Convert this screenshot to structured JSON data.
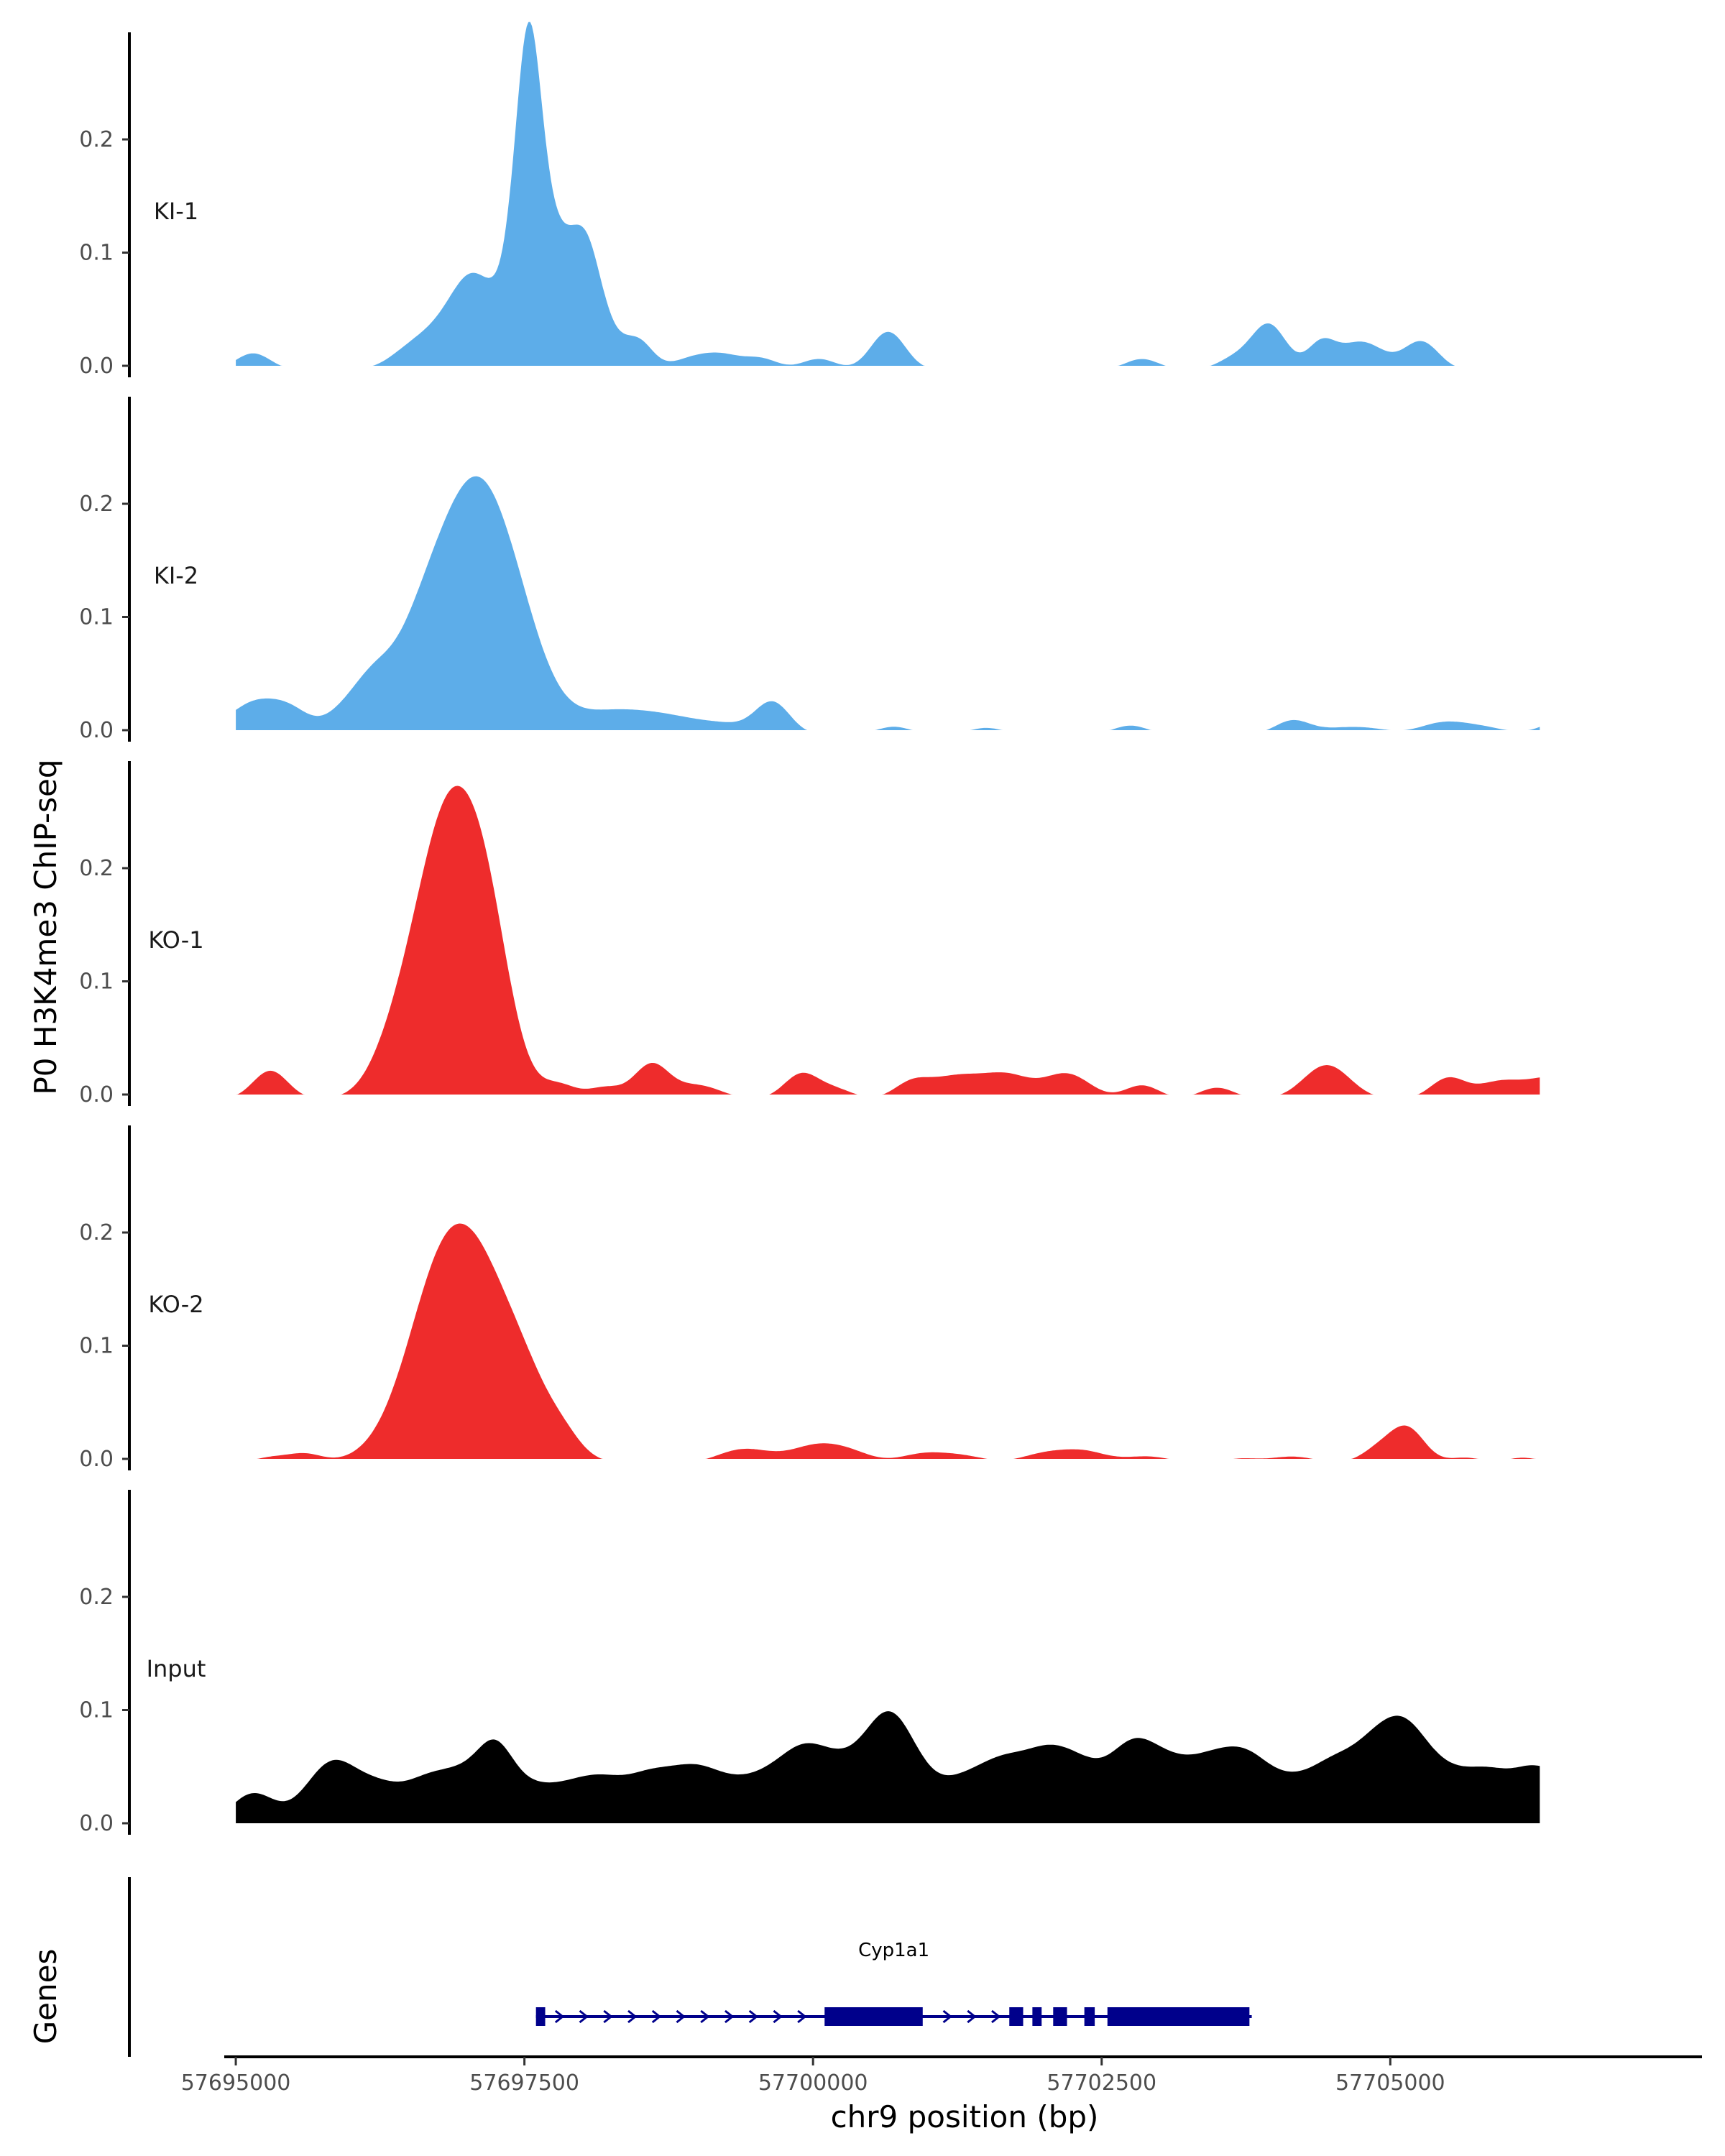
{
  "chart_data": {
    "type": "area",
    "title": "",
    "ylabel": "P0 H3K4me3 ChIP-seq",
    "xlabel": "chr9 position (bp)",
    "genes_label": "Genes",
    "xlim": [
      57694900,
      57707700
    ],
    "ylim": [
      0,
      0.3
    ],
    "x_ticks": [
      57695000,
      57697500,
      57700000,
      57702500,
      57705000
    ],
    "x_tick_labels": [
      "57695000",
      "57697500",
      "57700000",
      "57702500",
      "57705000"
    ],
    "y_ticks": [
      0.0,
      0.1,
      0.2
    ],
    "y_tick_labels": [
      "0.0",
      "0.1",
      "0.2"
    ],
    "colors": {
      "KI": "#5dade9",
      "KO": "#ee2c2c",
      "Input": "#000000",
      "gene": "#00008b",
      "axis": "#000000"
    },
    "series": [
      {
        "name": "KI-1",
        "color": "#5dade9",
        "peaks": [
          [
            57695150,
            0.015,
            150
          ],
          [
            57696550,
            0.02,
            200
          ],
          [
            57696900,
            0.035,
            200
          ],
          [
            57697050,
            0.02,
            150
          ],
          [
            57697230,
            0.05,
            250
          ],
          [
            57697460,
            0.08,
            120
          ],
          [
            57697540,
            0.135,
            100
          ],
          [
            57697600,
            0.045,
            120
          ],
          [
            57697700,
            0.075,
            150
          ],
          [
            57697900,
            0.055,
            150
          ],
          [
            57698050,
            0.05,
            120
          ],
          [
            57698150,
            0.035,
            200
          ],
          [
            57698500,
            0.02,
            120
          ],
          [
            57699000,
            0.012,
            200
          ],
          [
            57699250,
            0.008,
            150
          ],
          [
            57699550,
            0.01,
            150
          ],
          [
            57700050,
            0.01,
            150
          ],
          [
            57700650,
            0.034,
            150
          ],
          [
            57702850,
            0.01,
            150
          ],
          [
            57703650,
            0.01,
            150
          ],
          [
            57703950,
            0.04,
            150
          ],
          [
            57704400,
            0.022,
            120
          ],
          [
            57704750,
            0.025,
            200
          ],
          [
            57705270,
            0.025,
            150
          ]
        ]
      },
      {
        "name": "KI-2",
        "color": "#5dade9",
        "peaks": [
          [
            57695200,
            0.03,
            250
          ],
          [
            57695500,
            0.01,
            150
          ],
          [
            57696000,
            0.02,
            200
          ],
          [
            57696200,
            0.015,
            150
          ],
          [
            57696900,
            0.17,
            400
          ],
          [
            57697200,
            0.08,
            250
          ],
          [
            57697500,
            0.03,
            200
          ],
          [
            57697750,
            0.01,
            200
          ],
          [
            57698100,
            0.01,
            250
          ],
          [
            57698450,
            0.015,
            300
          ],
          [
            57698900,
            0.01,
            300
          ],
          [
            57699300,
            0.005,
            200
          ],
          [
            57699650,
            0.028,
            150
          ],
          [
            57700700,
            0.007,
            150
          ],
          [
            57701500,
            0.006,
            150
          ],
          [
            57702750,
            0.008,
            150
          ],
          [
            57704150,
            0.012,
            150
          ],
          [
            57704500,
            0.004,
            200
          ],
          [
            57704800,
            0.005,
            200
          ],
          [
            57705450,
            0.01,
            200
          ],
          [
            57705800,
            0.006,
            200
          ],
          [
            57706550,
            0.015,
            200
          ],
          [
            57706850,
            0.008,
            150
          ]
        ]
      },
      {
        "name": "KO-1",
        "color": "#ee2c2c",
        "peaks": [
          [
            57695300,
            0.025,
            150
          ],
          [
            57696350,
            0.022,
            200
          ],
          [
            57696850,
            0.255,
            300
          ],
          [
            57697200,
            0.075,
            200
          ],
          [
            57697800,
            0.012,
            150
          ],
          [
            57698200,
            0.01,
            150
          ],
          [
            57698600,
            0.03,
            150
          ],
          [
            57699000,
            0.012,
            200
          ],
          [
            57699900,
            0.022,
            150
          ],
          [
            57700200,
            0.008,
            150
          ],
          [
            57700850,
            0.012,
            150
          ],
          [
            57701250,
            0.02,
            250
          ],
          [
            57701700,
            0.018,
            200
          ],
          [
            57702200,
            0.022,
            200
          ],
          [
            57702850,
            0.012,
            150
          ],
          [
            57703500,
            0.01,
            150
          ],
          [
            57704450,
            0.03,
            200
          ],
          [
            57705500,
            0.018,
            150
          ],
          [
            57705950,
            0.015,
            200
          ],
          [
            57706400,
            0.018,
            200
          ],
          [
            57706800,
            0.012,
            150
          ],
          [
            57707250,
            0.008,
            150
          ],
          [
            57708000,
            0.008,
            150
          ]
        ]
      },
      {
        "name": "KO-2",
        "color": "#ee2c2c",
        "peaks": [
          [
            57695300,
            0.005,
            150
          ],
          [
            57695600,
            0.008,
            150
          ],
          [
            57696700,
            0.03,
            250
          ],
          [
            57697000,
            0.195,
            400
          ],
          [
            57697550,
            0.02,
            200
          ],
          [
            57697850,
            0.012,
            150
          ],
          [
            57699350,
            0.01,
            200
          ],
          [
            57699600,
            0.005,
            200
          ],
          [
            57700000,
            0.013,
            200
          ],
          [
            57700300,
            0.01,
            200
          ],
          [
            57700950,
            0.008,
            200
          ],
          [
            57701300,
            0.006,
            200
          ],
          [
            57702000,
            0.008,
            200
          ],
          [
            57702350,
            0.01,
            200
          ],
          [
            57702900,
            0.006,
            200
          ],
          [
            57703700,
            0.004,
            150
          ],
          [
            57704150,
            0.006,
            200
          ],
          [
            57704900,
            0.012,
            150
          ],
          [
            57705150,
            0.03,
            150
          ],
          [
            57705650,
            0.005,
            150
          ],
          [
            57706150,
            0.005,
            150
          ],
          [
            57706800,
            0.025,
            150
          ],
          [
            57707200,
            0.005,
            150
          ]
        ]
      },
      {
        "name": "Input",
        "color": "#000000",
        "peaks": [
          [
            57695150,
            0.03,
            200
          ],
          [
            57695700,
            0.025,
            200
          ],
          [
            57695900,
            0.038,
            200
          ],
          [
            57696250,
            0.03,
            200
          ],
          [
            57696650,
            0.035,
            200
          ],
          [
            57697000,
            0.04,
            200
          ],
          [
            57697250,
            0.045,
            150
          ],
          [
            57697500,
            0.03,
            200
          ],
          [
            57697850,
            0.025,
            200
          ],
          [
            57698150,
            0.03,
            200
          ],
          [
            57698600,
            0.045,
            250
          ],
          [
            57699000,
            0.035,
            200
          ],
          [
            57699300,
            0.025,
            200
          ],
          [
            57699600,
            0.03,
            200
          ],
          [
            57699900,
            0.045,
            200
          ],
          [
            57700250,
            0.05,
            250
          ],
          [
            57700650,
            0.075,
            200
          ],
          [
            57700900,
            0.03,
            200
          ],
          [
            57701250,
            0.025,
            200
          ],
          [
            57701650,
            0.055,
            250
          ],
          [
            57702050,
            0.045,
            200
          ],
          [
            57702350,
            0.04,
            200
          ],
          [
            57702750,
            0.06,
            200
          ],
          [
            57703050,
            0.035,
            200
          ],
          [
            57703450,
            0.055,
            250
          ],
          [
            57703800,
            0.04,
            200
          ],
          [
            57704150,
            0.03,
            200
          ],
          [
            57704500,
            0.045,
            200
          ],
          [
            57704850,
            0.055,
            200
          ],
          [
            57705150,
            0.07,
            200
          ],
          [
            57705500,
            0.035,
            200
          ],
          [
            57705850,
            0.04,
            200
          ],
          [
            57706250,
            0.045,
            200
          ],
          [
            57706650,
            0.035,
            200
          ],
          [
            57707050,
            0.04,
            200
          ],
          [
            57707300,
            0.035,
            150
          ],
          [
            57707700,
            0.02,
            200
          ],
          [
            57708000,
            0.03,
            200
          ]
        ]
      }
    ],
    "gene": {
      "name": "Cyp1a1",
      "strand": "+",
      "start": 57697600,
      "end": 57703800,
      "exons": [
        [
          57697600,
          57697680
        ],
        [
          57700100,
          57700950
        ],
        [
          57701700,
          57701820
        ],
        [
          57701900,
          57701980
        ],
        [
          57702080,
          57702200
        ],
        [
          57702350,
          57702440
        ],
        [
          57702550,
          57703780
        ]
      ]
    }
  }
}
